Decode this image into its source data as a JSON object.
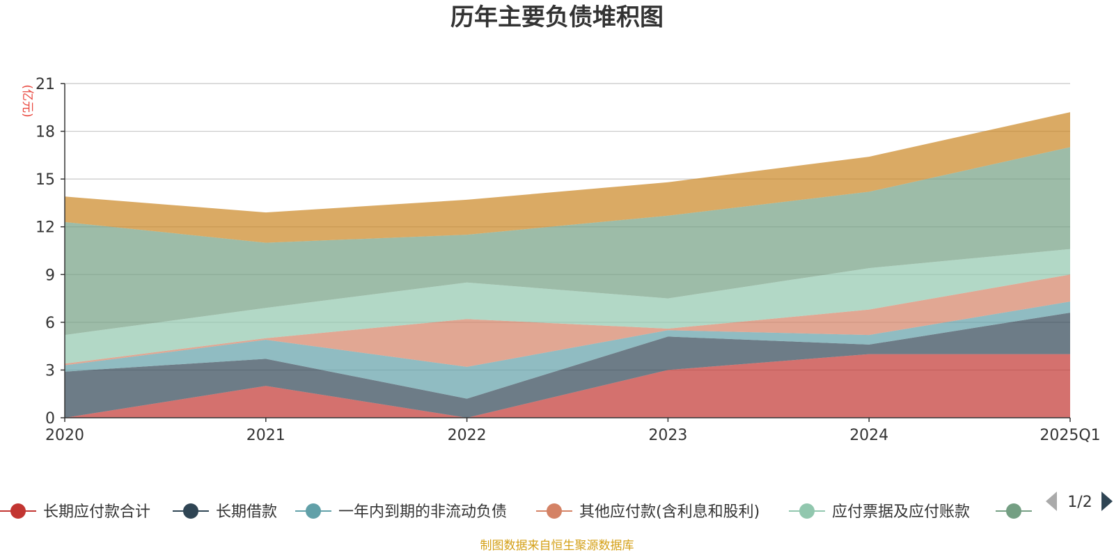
{
  "chart_data": {
    "type": "area",
    "stacked": true,
    "title": "历年主要负债堆积图",
    "unit_label": "(亿元)",
    "x": [
      "2020",
      "2021",
      "2022",
      "2023",
      "2024",
      "2025Q1"
    ],
    "ylim": [
      0,
      21
    ],
    "yticks": [
      0,
      3,
      6,
      9,
      12,
      15,
      18,
      21
    ],
    "grid": true,
    "series": [
      {
        "name": "长期应付款合计",
        "color": "#c23531",
        "values": [
          0.0,
          2.0,
          0.0,
          3.0,
          4.0,
          4.0
        ]
      },
      {
        "name": "长期借款",
        "color": "#2f4554",
        "values": [
          2.9,
          1.7,
          1.2,
          2.1,
          0.6,
          2.6
        ]
      },
      {
        "name": "一年内到期的非流动负债",
        "color": "#61a0a8",
        "values": [
          0.4,
          1.2,
          2.0,
          0.4,
          0.6,
          0.7
        ]
      },
      {
        "name": "其他应付款(含利息和股利)",
        "color": "#d48265",
        "values": [
          0.1,
          0.1,
          3.0,
          0.1,
          1.6,
          1.7
        ]
      },
      {
        "name": "应付票据及应付账款",
        "color": "#91c7ae",
        "values": [
          1.8,
          1.9,
          2.3,
          1.9,
          2.6,
          1.6
        ]
      },
      {
        "name": "",
        "color": "#749f83",
        "values": [
          7.1,
          4.1,
          3.0,
          5.2,
          4.8,
          6.4
        ]
      },
      {
        "name": "",
        "color": "#ca8622",
        "values": [
          1.6,
          1.9,
          2.2,
          2.1,
          2.2,
          2.2
        ]
      }
    ],
    "legend": {
      "position": "bottom",
      "items": [
        {
          "name": "长期应付款合计",
          "color": "#c23531"
        },
        {
          "name": "长期借款",
          "color": "#2f4554"
        },
        {
          "name": "一年内到期的非流动负债",
          "color": "#61a0a8"
        },
        {
          "name": "其他应付款(含利息和股利)",
          "color": "#d48265"
        },
        {
          "name": "应付票据及应付账款",
          "color": "#91c7ae"
        },
        {
          "name": "",
          "color": "#749f83"
        }
      ],
      "page": "1/2"
    },
    "source": "制图数据来自恒生聚源数据库"
  }
}
